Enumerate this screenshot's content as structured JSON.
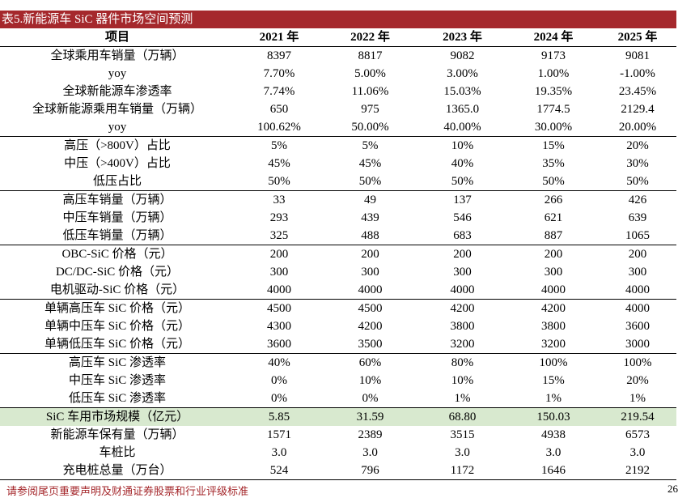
{
  "table": {
    "title": "表5.新能源车 SiC 器件市场空间预测",
    "header": [
      "项目",
      "2021 年",
      "2022 年",
      "2023 年",
      "2024 年",
      "2025 年"
    ],
    "groups": [
      [
        [
          "全球乘用车销量（万辆）",
          "8397",
          "8817",
          "9082",
          "9173",
          "9081"
        ],
        [
          "yoy",
          "7.70%",
          "5.00%",
          "3.00%",
          "1.00%",
          "-1.00%"
        ],
        [
          "全球新能源车渗透率",
          "7.74%",
          "11.06%",
          "15.03%",
          "19.35%",
          "23.45%"
        ],
        [
          "全球新能源乘用车销量（万辆）",
          "650",
          "975",
          "1365.0",
          "1774.5",
          "2129.4"
        ],
        [
          "yoy",
          "100.62%",
          "50.00%",
          "40.00%",
          "30.00%",
          "20.00%"
        ]
      ],
      [
        [
          "高压（>800V）占比",
          "5%",
          "5%",
          "10%",
          "15%",
          "20%"
        ],
        [
          "中压（>400V）占比",
          "45%",
          "45%",
          "40%",
          "35%",
          "30%"
        ],
        [
          "低压占比",
          "50%",
          "50%",
          "50%",
          "50%",
          "50%"
        ]
      ],
      [
        [
          "高压车销量（万辆）",
          "33",
          "49",
          "137",
          "266",
          "426"
        ],
        [
          "中压车销量（万辆）",
          "293",
          "439",
          "546",
          "621",
          "639"
        ],
        [
          "低压车销量（万辆）",
          "325",
          "488",
          "683",
          "887",
          "1065"
        ]
      ],
      [
        [
          "OBC-SiC 价格（元）",
          "200",
          "200",
          "200",
          "200",
          "200"
        ],
        [
          "DC/DC-SiC 价格（元）",
          "300",
          "300",
          "300",
          "300",
          "300"
        ],
        [
          "电机驱动-SiC 价格（元）",
          "4000",
          "4000",
          "4000",
          "4000",
          "4000"
        ]
      ],
      [
        [
          "单辆高压车 SiC 价格（元）",
          "4500",
          "4500",
          "4200",
          "4200",
          "4000"
        ],
        [
          "单辆中压车 SiC 价格（元）",
          "4300",
          "4200",
          "3800",
          "3800",
          "3600"
        ],
        [
          "单辆低压车 SiC 价格（元）",
          "3600",
          "3500",
          "3200",
          "3200",
          "3000"
        ]
      ],
      [
        [
          "高压车 SiC 渗透率",
          "40%",
          "60%",
          "80%",
          "100%",
          "100%"
        ],
        [
          "中压车 SiC 渗透率",
          "0%",
          "10%",
          "10%",
          "15%",
          "20%"
        ],
        [
          "低压车 SiC 渗透率",
          "0%",
          "0%",
          "1%",
          "1%",
          "1%"
        ]
      ],
      [
        [
          "SiC 车用市场规模（亿元）",
          "5.85",
          "31.59",
          "68.80",
          "150.03",
          "219.54"
        ]
      ],
      [
        [
          "新能源车保有量（万辆）",
          "1571",
          "2389",
          "3515",
          "4938",
          "6573"
        ],
        [
          "车桩比",
          "3.0",
          "3.0",
          "3.0",
          "3.0",
          "3.0"
        ],
        [
          "充电桩总量（万台）",
          "524",
          "796",
          "1172",
          "1646",
          "2192"
        ]
      ]
    ]
  },
  "footer": {
    "note": "请参阅尾页重要声明及财通证券股票和行业评级标准",
    "page": "26"
  }
}
